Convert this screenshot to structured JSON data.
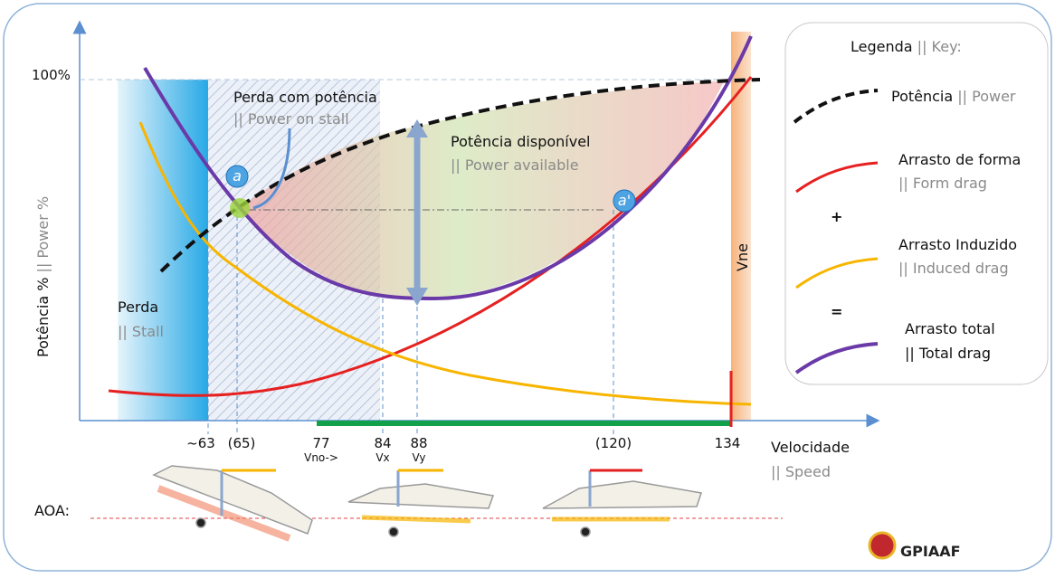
{
  "axis": {
    "y_title": "Potência %",
    "y_title_en": "|| Power %",
    "y_label": "100%",
    "x_title": "Velocidade",
    "x_title_en": "|| Speed",
    "ticks": [
      "~63",
      "(65)",
      "77",
      "84",
      "88",
      "(120)",
      "134"
    ],
    "tick_notes": [
      "Vno->",
      "Vx",
      "Vy"
    ]
  },
  "annotations": {
    "stall": "Perda",
    "stall_en": "|| Stall",
    "power_stall": "Perda com potência",
    "power_stall_en": "|| Power on stall",
    "available": "Potência disponível",
    "available_en": "|| Power available",
    "vne": "Vne",
    "point_a": "a",
    "point_a2": "a'"
  },
  "legend": {
    "title": "Legenda",
    "title_en": "|| Key:",
    "items": [
      {
        "label": "Potência",
        "label_en": "|| Power"
      },
      {
        "label": "Arrasto de forma",
        "label_en": "|| Form drag"
      },
      {
        "label": "Arrasto Induzido",
        "label_en": "|| Induced drag"
      },
      {
        "label": "Arrasto total",
        "label_en": "|| Total drag"
      }
    ],
    "plus": "+",
    "equals": "="
  },
  "aoa": "AOA:",
  "logo": "GPIAAF"
}
